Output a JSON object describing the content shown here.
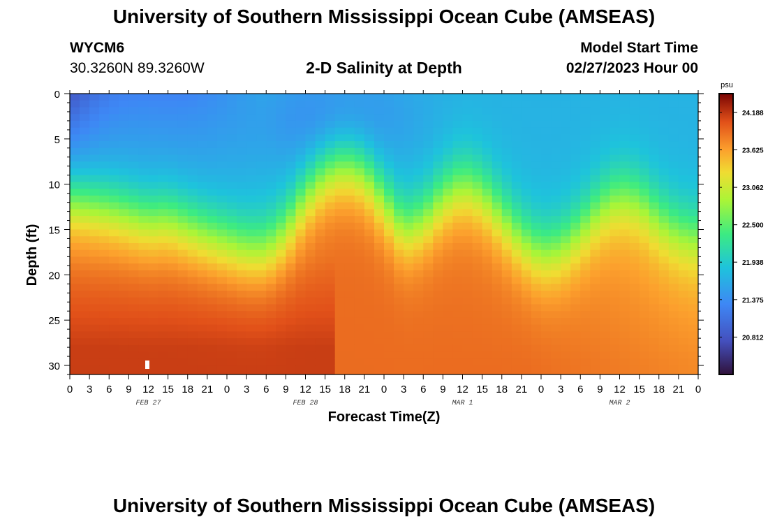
{
  "header": {
    "title": "University of Southern Mississippi Ocean Cube (AMSEAS)",
    "station_id": "WYCM6",
    "station_coords": "30.3260N  89.3260W",
    "plot_title": "2-D Salinity at Depth",
    "model_start_label": "Model Start Time",
    "model_start_value": "02/27/2023 Hour 00"
  },
  "footer": {
    "title": "University of Southern Mississippi Ocean Cube (AMSEAS)"
  },
  "chart_data": {
    "type": "heatmap",
    "title": "2-D Salinity at Depth",
    "xlabel": "Forecast Time(Z)",
    "ylabel": "Depth (ft)",
    "x_tick_labels": [
      "0",
      "3",
      "6",
      "9",
      "12",
      "15",
      "18",
      "21",
      "0",
      "3",
      "6",
      "9",
      "12",
      "15",
      "18",
      "21",
      "0",
      "3",
      "6",
      "9",
      "12",
      "15",
      "18",
      "21",
      "0",
      "3",
      "6",
      "9",
      "12",
      "15",
      "18",
      "21",
      "0"
    ],
    "x_range_hours": [
      0,
      96
    ],
    "x_step_hours": 3,
    "date_labels": [
      {
        "label": "FEB 27",
        "hour": 12
      },
      {
        "label": "FEB 28",
        "hour": 36
      },
      {
        "label": "MAR 1",
        "hour": 60
      },
      {
        "label": "MAR 2",
        "hour": 84
      }
    ],
    "y_ticks": [
      0,
      5,
      10,
      15,
      20,
      25,
      30
    ],
    "y_tick_labels": [
      "0",
      "5",
      "10",
      "15",
      "20",
      "25",
      "30"
    ],
    "ylim": [
      0,
      31
    ],
    "y_inverted": true,
    "colorbar": {
      "unit": "psu",
      "min": 20.25,
      "max": 24.47,
      "ticks": [
        24.188,
        23.625,
        23.062,
        22.5,
        21.938,
        21.375,
        20.812
      ],
      "tick_labels": [
        "24.188",
        "23.625",
        "23.062",
        "22.500",
        "21.938",
        "21.375",
        "20.812"
      ]
    },
    "halocline_depth_ft": [
      {
        "hour": 0,
        "depth": 12
      },
      {
        "hour": 6,
        "depth": 12.8
      },
      {
        "hour": 12,
        "depth": 14
      },
      {
        "hour": 15,
        "depth": 13.8
      },
      {
        "hour": 21,
        "depth": 15.5
      },
      {
        "hour": 27,
        "depth": 17
      },
      {
        "hour": 30,
        "depth": 17
      },
      {
        "hour": 33,
        "depth": 15
      },
      {
        "hour": 36,
        "depth": 11.5
      },
      {
        "hour": 39,
        "depth": 9
      },
      {
        "hour": 42,
        "depth": 8
      },
      {
        "hour": 45,
        "depth": 9
      },
      {
        "hour": 48,
        "depth": 12
      },
      {
        "hour": 51,
        "depth": 15
      },
      {
        "hour": 54,
        "depth": 14
      },
      {
        "hour": 57,
        "depth": 11.5
      },
      {
        "hour": 60,
        "depth": 10
      },
      {
        "hour": 63,
        "depth": 11
      },
      {
        "hour": 66,
        "depth": 13.5
      },
      {
        "hour": 69,
        "depth": 16
      },
      {
        "hour": 72,
        "depth": 17.5
      },
      {
        "hour": 75,
        "depth": 17
      },
      {
        "hour": 78,
        "depth": 15
      },
      {
        "hour": 81,
        "depth": 12.5
      },
      {
        "hour": 84,
        "depth": 11
      },
      {
        "hour": 87,
        "depth": 11.5
      },
      {
        "hour": 90,
        "depth": 13.5
      },
      {
        "hour": 93,
        "depth": 15
      },
      {
        "hour": 96,
        "depth": 15.5
      }
    ]
  }
}
